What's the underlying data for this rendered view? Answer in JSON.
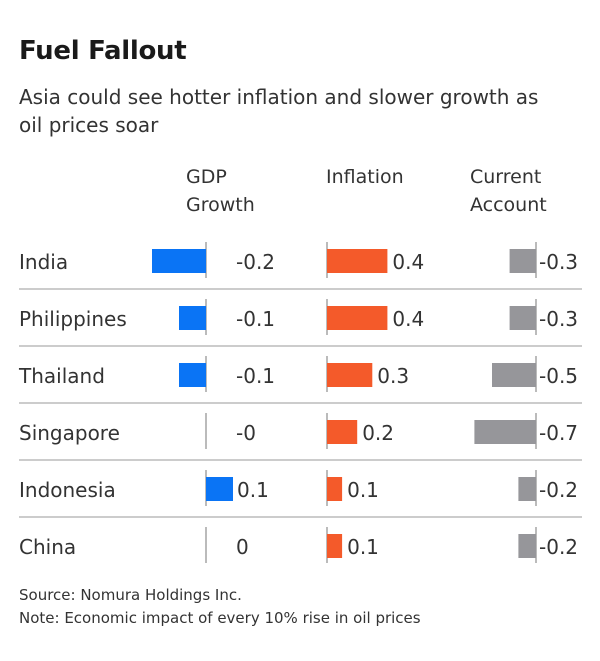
{
  "chart_data": {
    "type": "bar",
    "title": "Fuel Fallout",
    "subtitle": "Asia could see hotter inflation and slower growth as oil prices soar",
    "categories": [
      "India",
      "Philippines",
      "Thailand",
      "Singapore",
      "Indonesia",
      "China"
    ],
    "columns": [
      {
        "header": "GDP Growth",
        "color": "#0a74f5",
        "values": [
          -0.2,
          -0.1,
          -0.1,
          -0.0,
          0.1,
          0
        ],
        "labels": [
          "-0.2",
          "-0.1",
          "-0.1",
          "-0",
          "0.1",
          "0"
        ]
      },
      {
        "header": "Inflation",
        "color": "#f45a2a",
        "values": [
          0.4,
          0.4,
          0.3,
          0.2,
          0.1,
          0.1
        ],
        "labels": [
          "0.4",
          "0.4",
          "0.3",
          "0.2",
          "0.1",
          "0.1"
        ]
      },
      {
        "header": "Current Account",
        "color": "#96969a",
        "values": [
          -0.3,
          -0.3,
          -0.5,
          -0.7,
          -0.2,
          -0.2
        ],
        "labels": [
          "-0.3",
          "-0.3",
          "-0.5",
          "-0.7",
          "-0.2",
          "-0.2"
        ]
      }
    ],
    "source": "Source: Nomura Holdings Inc.",
    "note": "Note: Economic impact of every 10% rise in oil prices"
  }
}
